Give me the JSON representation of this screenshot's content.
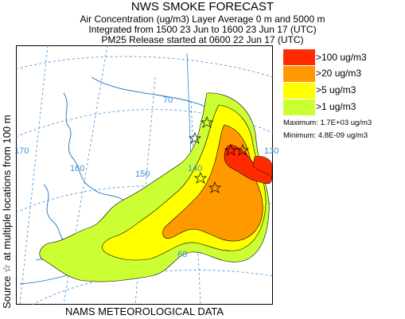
{
  "header": {
    "title": "NWS SMOKE FORECAST",
    "line1": "Air Concentration (ug/m3) Layer Average    0 m and  5000 m",
    "line2": "Integrated from 1500 23 Jun to 1600 23 Jun 17 (UTC)",
    "line3": "PM25 Release started at 0600 22 Jun 17 (UTC)"
  },
  "side_label": "Source ☆  at multiple locations  from   100 m",
  "footer": "NAMS METEOROLOGICAL DATA",
  "legend": {
    "items": [
      {
        "label": ">100 ug/m3",
        "color": "#ff2a00"
      },
      {
        "label": ">20 ug/m3",
        "color": "#ff9900"
      },
      {
        "label": ">5 ug/m3",
        "color": "#ffff00"
      },
      {
        "label": ">1 ug/m3",
        "color": "#ccff33"
      }
    ],
    "maximum": "Maximum: 1.7E+03 ug/m3",
    "minimum": "Minimum: 4.8E-09 ug/m3"
  },
  "map": {
    "grid_labels": [
      "170",
      "160",
      "150",
      "140",
      "130",
      "70",
      "60"
    ],
    "graticule_color": "#3a8fd6",
    "coast_color": "#1a73c7"
  }
}
